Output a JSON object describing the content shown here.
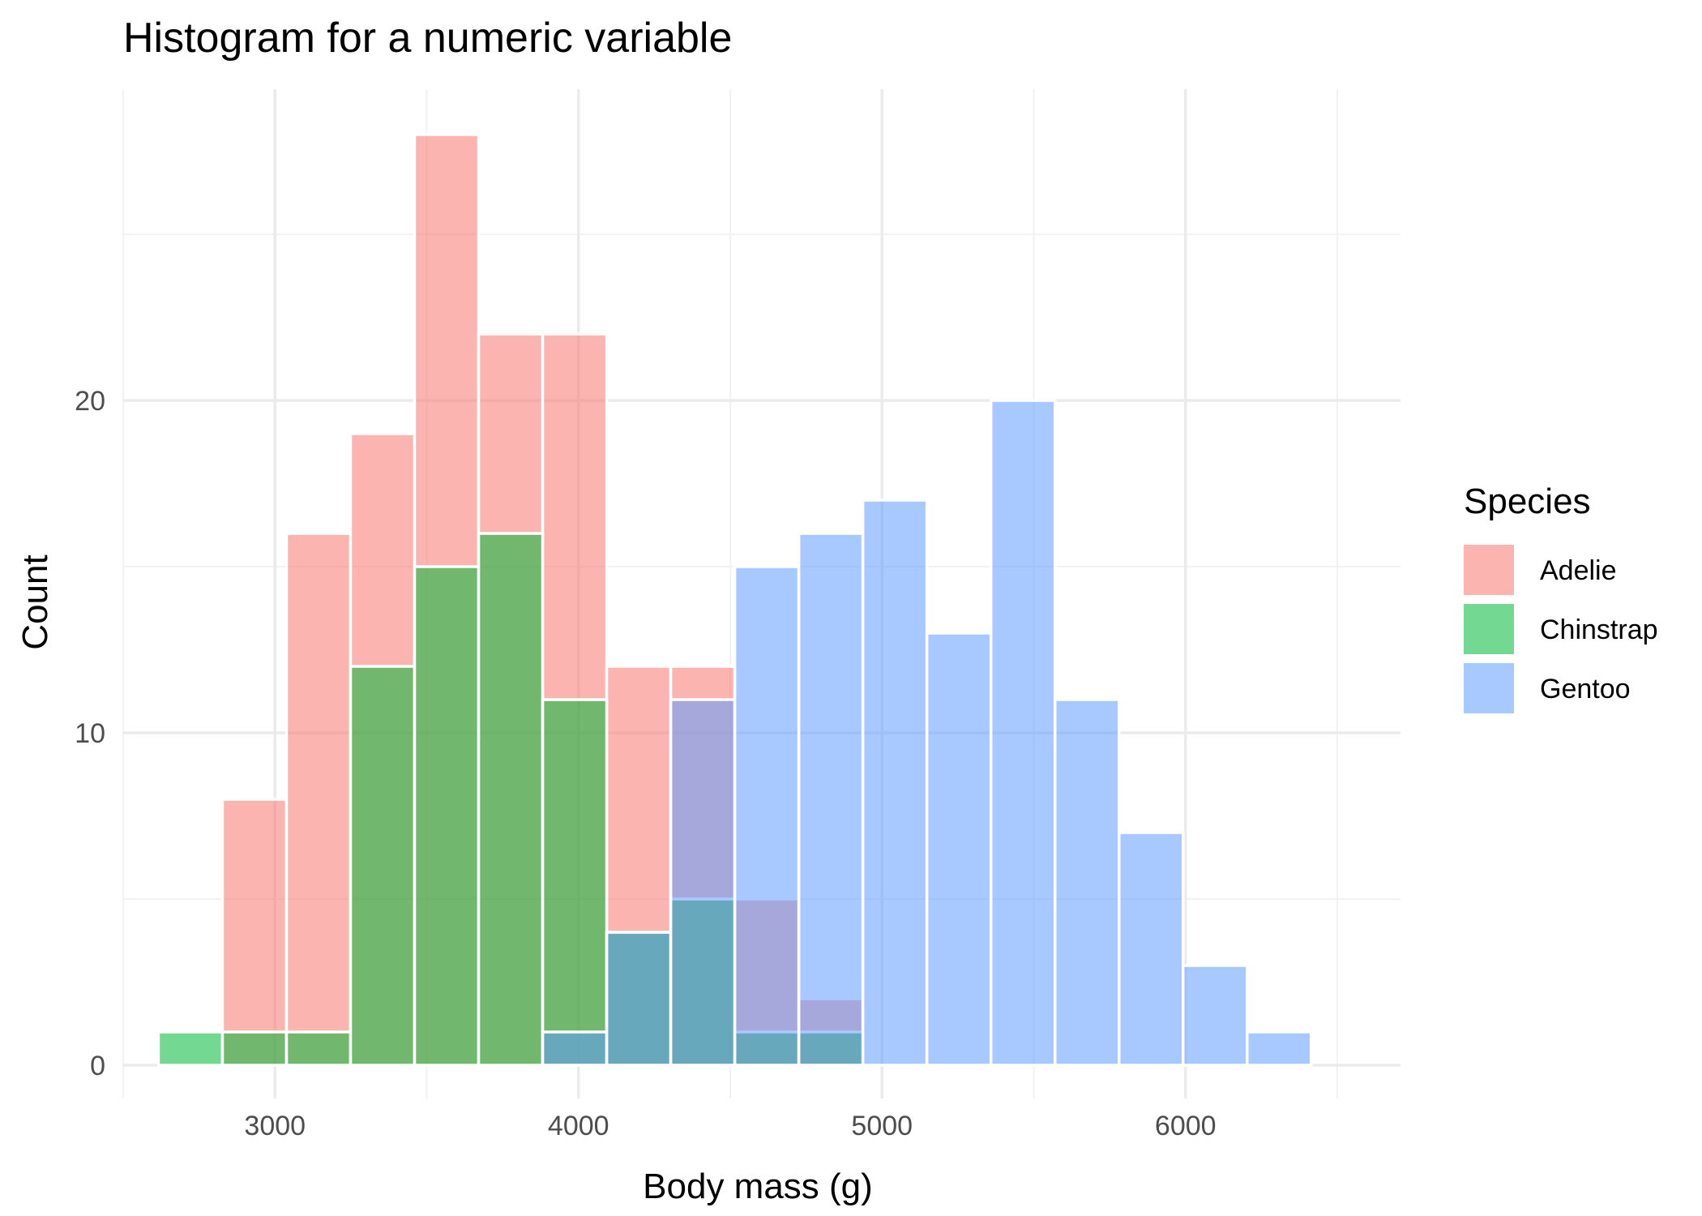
{
  "chart_data": {
    "type": "bar",
    "subtype": "histogram-overlapping",
    "title": "Histogram for a numeric variable",
    "xlabel": "Body mass (g)",
    "ylabel": "Count",
    "xlim": [
      2500,
      6500
    ],
    "ylim": [
      0,
      28
    ],
    "x_ticks": [
      3000,
      4000,
      5000,
      6000
    ],
    "y_ticks": [
      0,
      10,
      20
    ],
    "grid": true,
    "bin_width": 211,
    "bin_edges": [
      2616,
      2827,
      3038,
      3249,
      3460,
      3671,
      3882,
      4093,
      4304,
      4515,
      4726,
      4937,
      5148,
      5359,
      5570,
      5781,
      5992,
      6203,
      6414
    ],
    "legend": {
      "title": "Species",
      "position": "right"
    },
    "series": [
      {
        "name": "Adelie",
        "color": "#F8766D",
        "values": [
          0,
          8,
          16,
          19,
          28,
          22,
          22,
          12,
          12,
          5,
          2,
          0,
          0,
          0,
          0,
          0,
          0,
          0
        ]
      },
      {
        "name": "Chinstrap",
        "color": "#00BA38",
        "values": [
          1,
          1,
          1,
          12,
          15,
          16,
          11,
          4,
          5,
          1,
          1,
          0,
          0,
          0,
          0,
          0,
          0,
          0
        ]
      },
      {
        "name": "Gentoo",
        "color": "#619CFF",
        "values": [
          0,
          0,
          0,
          0,
          0,
          0,
          1,
          4,
          11,
          15,
          16,
          17,
          13,
          20,
          11,
          7,
          3,
          1
        ]
      }
    ]
  }
}
